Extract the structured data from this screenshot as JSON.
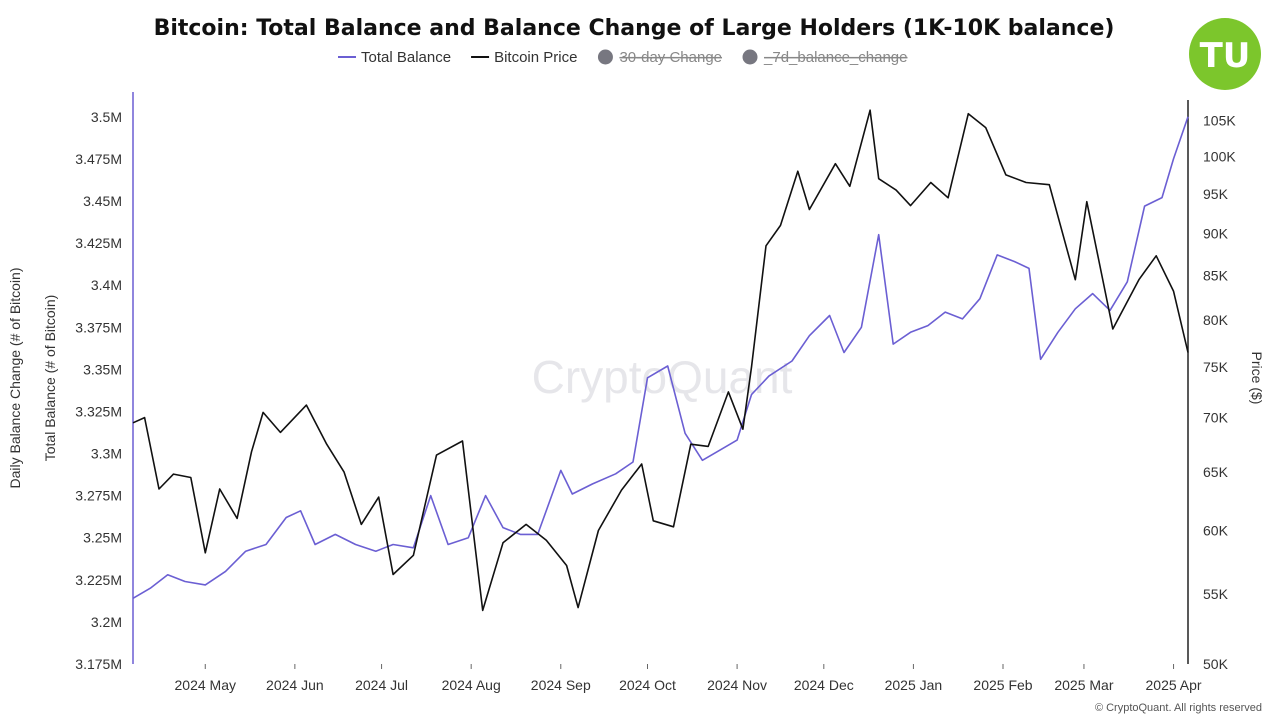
{
  "chart_data": {
    "type": "line",
    "title": "Bitcoin: Total Balance and Balance Change of Large Holders (1K-10K balance)",
    "legend": [
      {
        "name": "Total Balance",
        "color": "#6b5fd3",
        "marker": "line",
        "enabled": true
      },
      {
        "name": "Bitcoin Price",
        "color": "#111111",
        "marker": "line",
        "enabled": true
      },
      {
        "name": "30-day Change",
        "color": "#777780",
        "marker": "dot",
        "enabled": false
      },
      {
        "name": "_7d_balance_change",
        "color": "#777780",
        "marker": "dot",
        "enabled": false
      }
    ],
    "legend_placement": "top-center",
    "x_ticks": [
      "2024 May",
      "2024 Jun",
      "2024 Jul",
      "2024 Aug",
      "2024 Sep",
      "2024 Oct",
      "2024 Nov",
      "2024 Dec",
      "2025 Jan",
      "2025 Feb",
      "2025 Mar",
      "2025 Apr"
    ],
    "x_range": [
      "2024-04-06",
      "2025-04-06"
    ],
    "y_left_outer_label": "Daily Balance Change (# of Bitcoin)",
    "y_left_label": "Total Balance (# of Bitcoin)",
    "y_left_ticks": [
      "3.5M",
      "3.475M",
      "3.45M",
      "3.425M",
      "3.4M",
      "3.375M",
      "3.35M",
      "3.325M",
      "3.3M",
      "3.275M",
      "3.25M",
      "3.225M",
      "3.2M",
      "3.175M"
    ],
    "y_left_range": [
      3175000,
      3510000
    ],
    "y_right_label": "Price ($)",
    "y_right_ticks": [
      "105K",
      "100K",
      "95K",
      "90K",
      "85K",
      "80K",
      "75K",
      "70K",
      "65K",
      "60K",
      "55K",
      "50K"
    ],
    "y_right_scale": "log",
    "y_right_range": [
      50000,
      108000
    ],
    "grid": false,
    "series": [
      {
        "name": "Total Balance",
        "axis": "left",
        "color": "#6b5fd3",
        "points": [
          [
            "2024-04-06",
            3214000
          ],
          [
            "2024-04-12",
            3220000
          ],
          [
            "2024-04-18",
            3228000
          ],
          [
            "2024-04-24",
            3224000
          ],
          [
            "2024-05-01",
            3222000
          ],
          [
            "2024-05-08",
            3230000
          ],
          [
            "2024-05-15",
            3242000
          ],
          [
            "2024-05-22",
            3246000
          ],
          [
            "2024-05-29",
            3262000
          ],
          [
            "2024-06-03",
            3266000
          ],
          [
            "2024-06-08",
            3246000
          ],
          [
            "2024-06-15",
            3252000
          ],
          [
            "2024-06-22",
            3246000
          ],
          [
            "2024-06-29",
            3242000
          ],
          [
            "2024-07-05",
            3246000
          ],
          [
            "2024-07-12",
            3244000
          ],
          [
            "2024-07-18",
            3275000
          ],
          [
            "2024-07-24",
            3246000
          ],
          [
            "2024-07-31",
            3250000
          ],
          [
            "2024-08-06",
            3275000
          ],
          [
            "2024-08-12",
            3256000
          ],
          [
            "2024-08-18",
            3252000
          ],
          [
            "2024-08-24",
            3252000
          ],
          [
            "2024-09-01",
            3290000
          ],
          [
            "2024-09-05",
            3276000
          ],
          [
            "2024-09-12",
            3282000
          ],
          [
            "2024-09-20",
            3288000
          ],
          [
            "2024-09-26",
            3295000
          ],
          [
            "2024-10-01",
            3345000
          ],
          [
            "2024-10-08",
            3352000
          ],
          [
            "2024-10-14",
            3312000
          ],
          [
            "2024-10-20",
            3296000
          ],
          [
            "2024-10-26",
            3302000
          ],
          [
            "2024-11-01",
            3308000
          ],
          [
            "2024-11-06",
            3335000
          ],
          [
            "2024-11-12",
            3346000
          ],
          [
            "2024-11-20",
            3355000
          ],
          [
            "2024-11-26",
            3370000
          ],
          [
            "2024-12-03",
            3382000
          ],
          [
            "2024-12-08",
            3360000
          ],
          [
            "2024-12-14",
            3375000
          ],
          [
            "2024-12-20",
            3430000
          ],
          [
            "2024-12-25",
            3365000
          ],
          [
            "2024-12-31",
            3372000
          ],
          [
            "2025-01-06",
            3376000
          ],
          [
            "2025-01-12",
            3384000
          ],
          [
            "2025-01-18",
            3380000
          ],
          [
            "2025-01-24",
            3392000
          ],
          [
            "2025-01-30",
            3418000
          ],
          [
            "2025-02-05",
            3414000
          ],
          [
            "2025-02-10",
            3410000
          ],
          [
            "2025-02-14",
            3356000
          ],
          [
            "2025-02-20",
            3372000
          ],
          [
            "2025-02-26",
            3386000
          ],
          [
            "2025-03-04",
            3395000
          ],
          [
            "2025-03-10",
            3385000
          ],
          [
            "2025-03-16",
            3402000
          ],
          [
            "2025-03-22",
            3447000
          ],
          [
            "2025-03-28",
            3452000
          ],
          [
            "2025-04-01",
            3475000
          ],
          [
            "2025-04-06",
            3500000
          ]
        ]
      },
      {
        "name": "Bitcoin Price",
        "axis": "right",
        "color": "#111111",
        "points": [
          [
            "2024-04-06",
            69500
          ],
          [
            "2024-04-10",
            70000
          ],
          [
            "2024-04-15",
            63500
          ],
          [
            "2024-04-20",
            64800
          ],
          [
            "2024-04-26",
            64500
          ],
          [
            "2024-05-01",
            58200
          ],
          [
            "2024-05-06",
            63500
          ],
          [
            "2024-05-12",
            61000
          ],
          [
            "2024-05-17",
            66800
          ],
          [
            "2024-05-21",
            70500
          ],
          [
            "2024-05-27",
            68600
          ],
          [
            "2024-06-05",
            71200
          ],
          [
            "2024-06-12",
            67500
          ],
          [
            "2024-06-18",
            65000
          ],
          [
            "2024-06-24",
            60500
          ],
          [
            "2024-06-30",
            62800
          ],
          [
            "2024-07-05",
            56500
          ],
          [
            "2024-07-12",
            58000
          ],
          [
            "2024-07-20",
            66500
          ],
          [
            "2024-07-29",
            67800
          ],
          [
            "2024-08-05",
            53800
          ],
          [
            "2024-08-12",
            59000
          ],
          [
            "2024-08-20",
            60500
          ],
          [
            "2024-08-27",
            59200
          ],
          [
            "2024-09-03",
            57200
          ],
          [
            "2024-09-07",
            54000
          ],
          [
            "2024-09-14",
            60000
          ],
          [
            "2024-09-22",
            63400
          ],
          [
            "2024-09-29",
            65700
          ],
          [
            "2024-10-03",
            60800
          ],
          [
            "2024-10-10",
            60300
          ],
          [
            "2024-10-16",
            67500
          ],
          [
            "2024-10-22",
            67300
          ],
          [
            "2024-10-29",
            72500
          ],
          [
            "2024-11-03",
            68900
          ],
          [
            "2024-11-06",
            75000
          ],
          [
            "2024-11-11",
            88500
          ],
          [
            "2024-11-16",
            91000
          ],
          [
            "2024-11-22",
            98000
          ],
          [
            "2024-11-26",
            93000
          ],
          [
            "2024-12-05",
            99000
          ],
          [
            "2024-12-10",
            96000
          ],
          [
            "2024-12-17",
            106500
          ],
          [
            "2024-12-20",
            97000
          ],
          [
            "2024-12-26",
            95500
          ],
          [
            "2024-12-31",
            93500
          ],
          [
            "2025-01-07",
            96500
          ],
          [
            "2025-01-13",
            94500
          ],
          [
            "2025-01-20",
            106000
          ],
          [
            "2025-01-26",
            104000
          ],
          [
            "2025-02-02",
            97500
          ],
          [
            "2025-02-09",
            96500
          ],
          [
            "2025-02-17",
            96200
          ],
          [
            "2025-02-26",
            84500
          ],
          [
            "2025-03-02",
            94000
          ],
          [
            "2025-03-06",
            87000
          ],
          [
            "2025-03-11",
            79000
          ],
          [
            "2025-03-20",
            84500
          ],
          [
            "2025-03-26",
            87300
          ],
          [
            "2025-04-01",
            83200
          ],
          [
            "2025-04-06",
            76500
          ]
        ]
      }
    ]
  },
  "watermark": "CryptoQuant",
  "footer": "© CryptoQuant. All rights reserved",
  "logo": "TU",
  "colors": {
    "balance": "#6b5fd3",
    "price": "#111111",
    "logo_green": "#7cc62c",
    "left_axis": "#6b5fd3",
    "right_axis": "#222222"
  }
}
